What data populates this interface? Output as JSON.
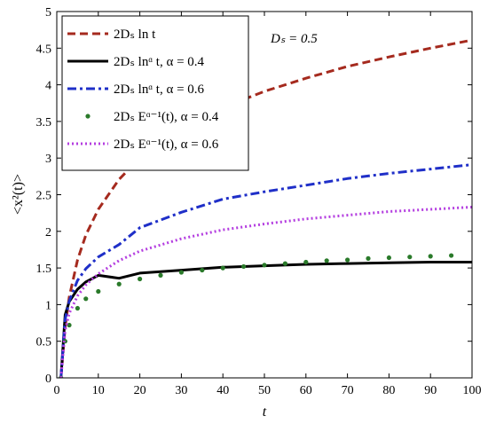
{
  "chart_data": {
    "type": "line",
    "xlabel": "t",
    "ylabel": "<x²(t)>",
    "xlim": [
      0,
      100
    ],
    "ylim": [
      0,
      5
    ],
    "xticks": [
      0,
      10,
      20,
      30,
      40,
      50,
      60,
      70,
      80,
      90,
      100
    ],
    "yticks": [
      0,
      0.5,
      1,
      1.5,
      2,
      2.5,
      3,
      3.5,
      4,
      4.5,
      5
    ],
    "grid": false,
    "legend_position": "top-left",
    "annotation": "Dₛ = 0.5",
    "series": [
      {
        "name": "2Dₛ ln t",
        "color": "#a52a1e",
        "style": "dashed",
        "x": [
          1,
          2,
          3,
          5,
          7,
          10,
          15,
          20,
          30,
          40,
          50,
          60,
          70,
          80,
          90,
          100
        ],
        "y": [
          0.0,
          0.69,
          1.1,
          1.61,
          1.95,
          2.3,
          2.71,
          3.0,
          3.4,
          3.69,
          3.91,
          4.09,
          4.25,
          4.38,
          4.5,
          4.61
        ]
      },
      {
        "name": "2Dₛ lnᵅ t, α = 0.4",
        "color": "#000000",
        "style": "solid",
        "x": [
          1,
          2,
          3,
          5,
          7,
          10,
          15,
          20,
          30,
          40,
          50,
          60,
          70,
          80,
          90,
          100
        ],
        "y": [
          0.0,
          0.86,
          1.04,
          1.21,
          1.31,
          1.4,
          1.36,
          1.43,
          1.47,
          1.51,
          1.53,
          1.55,
          1.56,
          1.57,
          1.58,
          1.58
        ]
      },
      {
        "name": "2Dₛ lnᵅ t, α = 0.6",
        "color": "#1f2fc8",
        "style": "dashdot",
        "x": [
          1,
          2,
          3,
          5,
          7,
          10,
          15,
          20,
          30,
          40,
          50,
          60,
          70,
          80,
          90,
          100
        ],
        "y": [
          0.0,
          0.8,
          1.05,
          1.33,
          1.49,
          1.65,
          1.82,
          2.05,
          2.26,
          2.44,
          2.54,
          2.63,
          2.72,
          2.79,
          2.85,
          2.91
        ]
      },
      {
        "name": "2Dₛ Eᵅ⁻¹(t), α = 0.4",
        "color": "#2a7a2a",
        "style": "dotted-markers",
        "x": [
          1,
          2,
          3,
          5,
          7,
          10,
          15,
          20,
          25,
          30,
          35,
          40,
          45,
          50,
          55,
          60,
          65,
          70,
          75,
          80,
          85,
          90,
          95
        ],
        "y": [
          0.0,
          0.5,
          0.72,
          0.95,
          1.08,
          1.18,
          1.28,
          1.35,
          1.4,
          1.44,
          1.47,
          1.5,
          1.52,
          1.54,
          1.56,
          1.58,
          1.6,
          1.61,
          1.63,
          1.64,
          1.65,
          1.66,
          1.67
        ]
      },
      {
        "name": "2Dₛ Eᵅ⁻¹(t), α = 0.6",
        "color": "#b43ee0",
        "style": "dotted",
        "x": [
          1,
          2,
          3,
          5,
          7,
          10,
          15,
          20,
          30,
          40,
          50,
          60,
          70,
          80,
          90,
          100
        ],
        "y": [
          0.0,
          0.65,
          0.88,
          1.12,
          1.27,
          1.42,
          1.6,
          1.73,
          1.9,
          2.02,
          2.1,
          2.17,
          2.22,
          2.27,
          2.3,
          2.33
        ]
      }
    ]
  }
}
